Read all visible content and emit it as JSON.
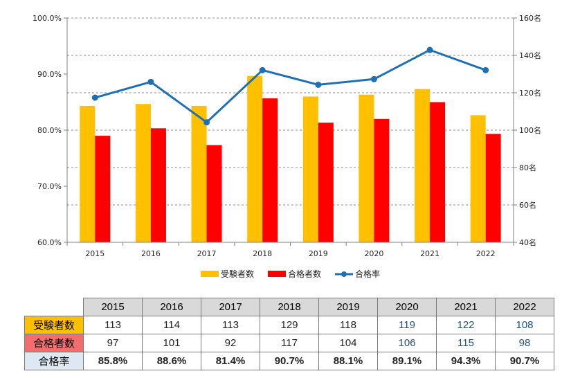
{
  "chart_data": {
    "type": "bar+line",
    "categories": [
      "2015",
      "2016",
      "2017",
      "2018",
      "2019",
      "2020",
      "2021",
      "2022"
    ],
    "series": [
      {
        "name": "受験者数",
        "type": "bar",
        "axis": "right",
        "color": "#ffc000",
        "values": [
          113,
          114,
          113,
          129,
          118,
          119,
          122,
          108
        ]
      },
      {
        "name": "合格者数",
        "type": "bar",
        "axis": "right",
        "color": "#ff0000",
        "values": [
          97,
          101,
          92,
          117,
          104,
          106,
          115,
          98
        ]
      },
      {
        "name": "合格率",
        "type": "line",
        "axis": "left",
        "color": "#1f6fb5",
        "values": [
          85.8,
          88.6,
          81.4,
          90.7,
          88.1,
          89.1,
          94.3,
          90.7
        ]
      }
    ],
    "left_axis": {
      "min": 60,
      "max": 100,
      "step": 10,
      "tick_labels": [
        "60.0%",
        "70.0%",
        "80.0%",
        "90.0%",
        "100.0%"
      ]
    },
    "right_axis": {
      "min": 40,
      "max": 160,
      "step": 20,
      "tick_labels": [
        "40名",
        "60名",
        "80名",
        "100名",
        "120名",
        "140名",
        "160名"
      ]
    },
    "legend": [
      "受験者数",
      "合格者数",
      "合格率"
    ],
    "legend_position": "bottom"
  },
  "table": {
    "header": [
      "2015",
      "2016",
      "2017",
      "2018",
      "2019",
      "2020",
      "2021",
      "2022"
    ],
    "rows": [
      {
        "label": "受験者数",
        "label_color": "#ffc000",
        "values": [
          "113",
          "114",
          "113",
          "129",
          "118",
          "119",
          "122",
          "108"
        ]
      },
      {
        "label": "合格者数",
        "label_color": "#f26d6d",
        "values": [
          "97",
          "101",
          "92",
          "117",
          "104",
          "106",
          "115",
          "98"
        ]
      },
      {
        "label": "合格率",
        "label_color": "#dde8f2",
        "values": [
          "85.8%",
          "88.6%",
          "81.4%",
          "90.7%",
          "88.1%",
          "89.1%",
          "94.3%",
          "90.7%"
        ]
      }
    ]
  }
}
